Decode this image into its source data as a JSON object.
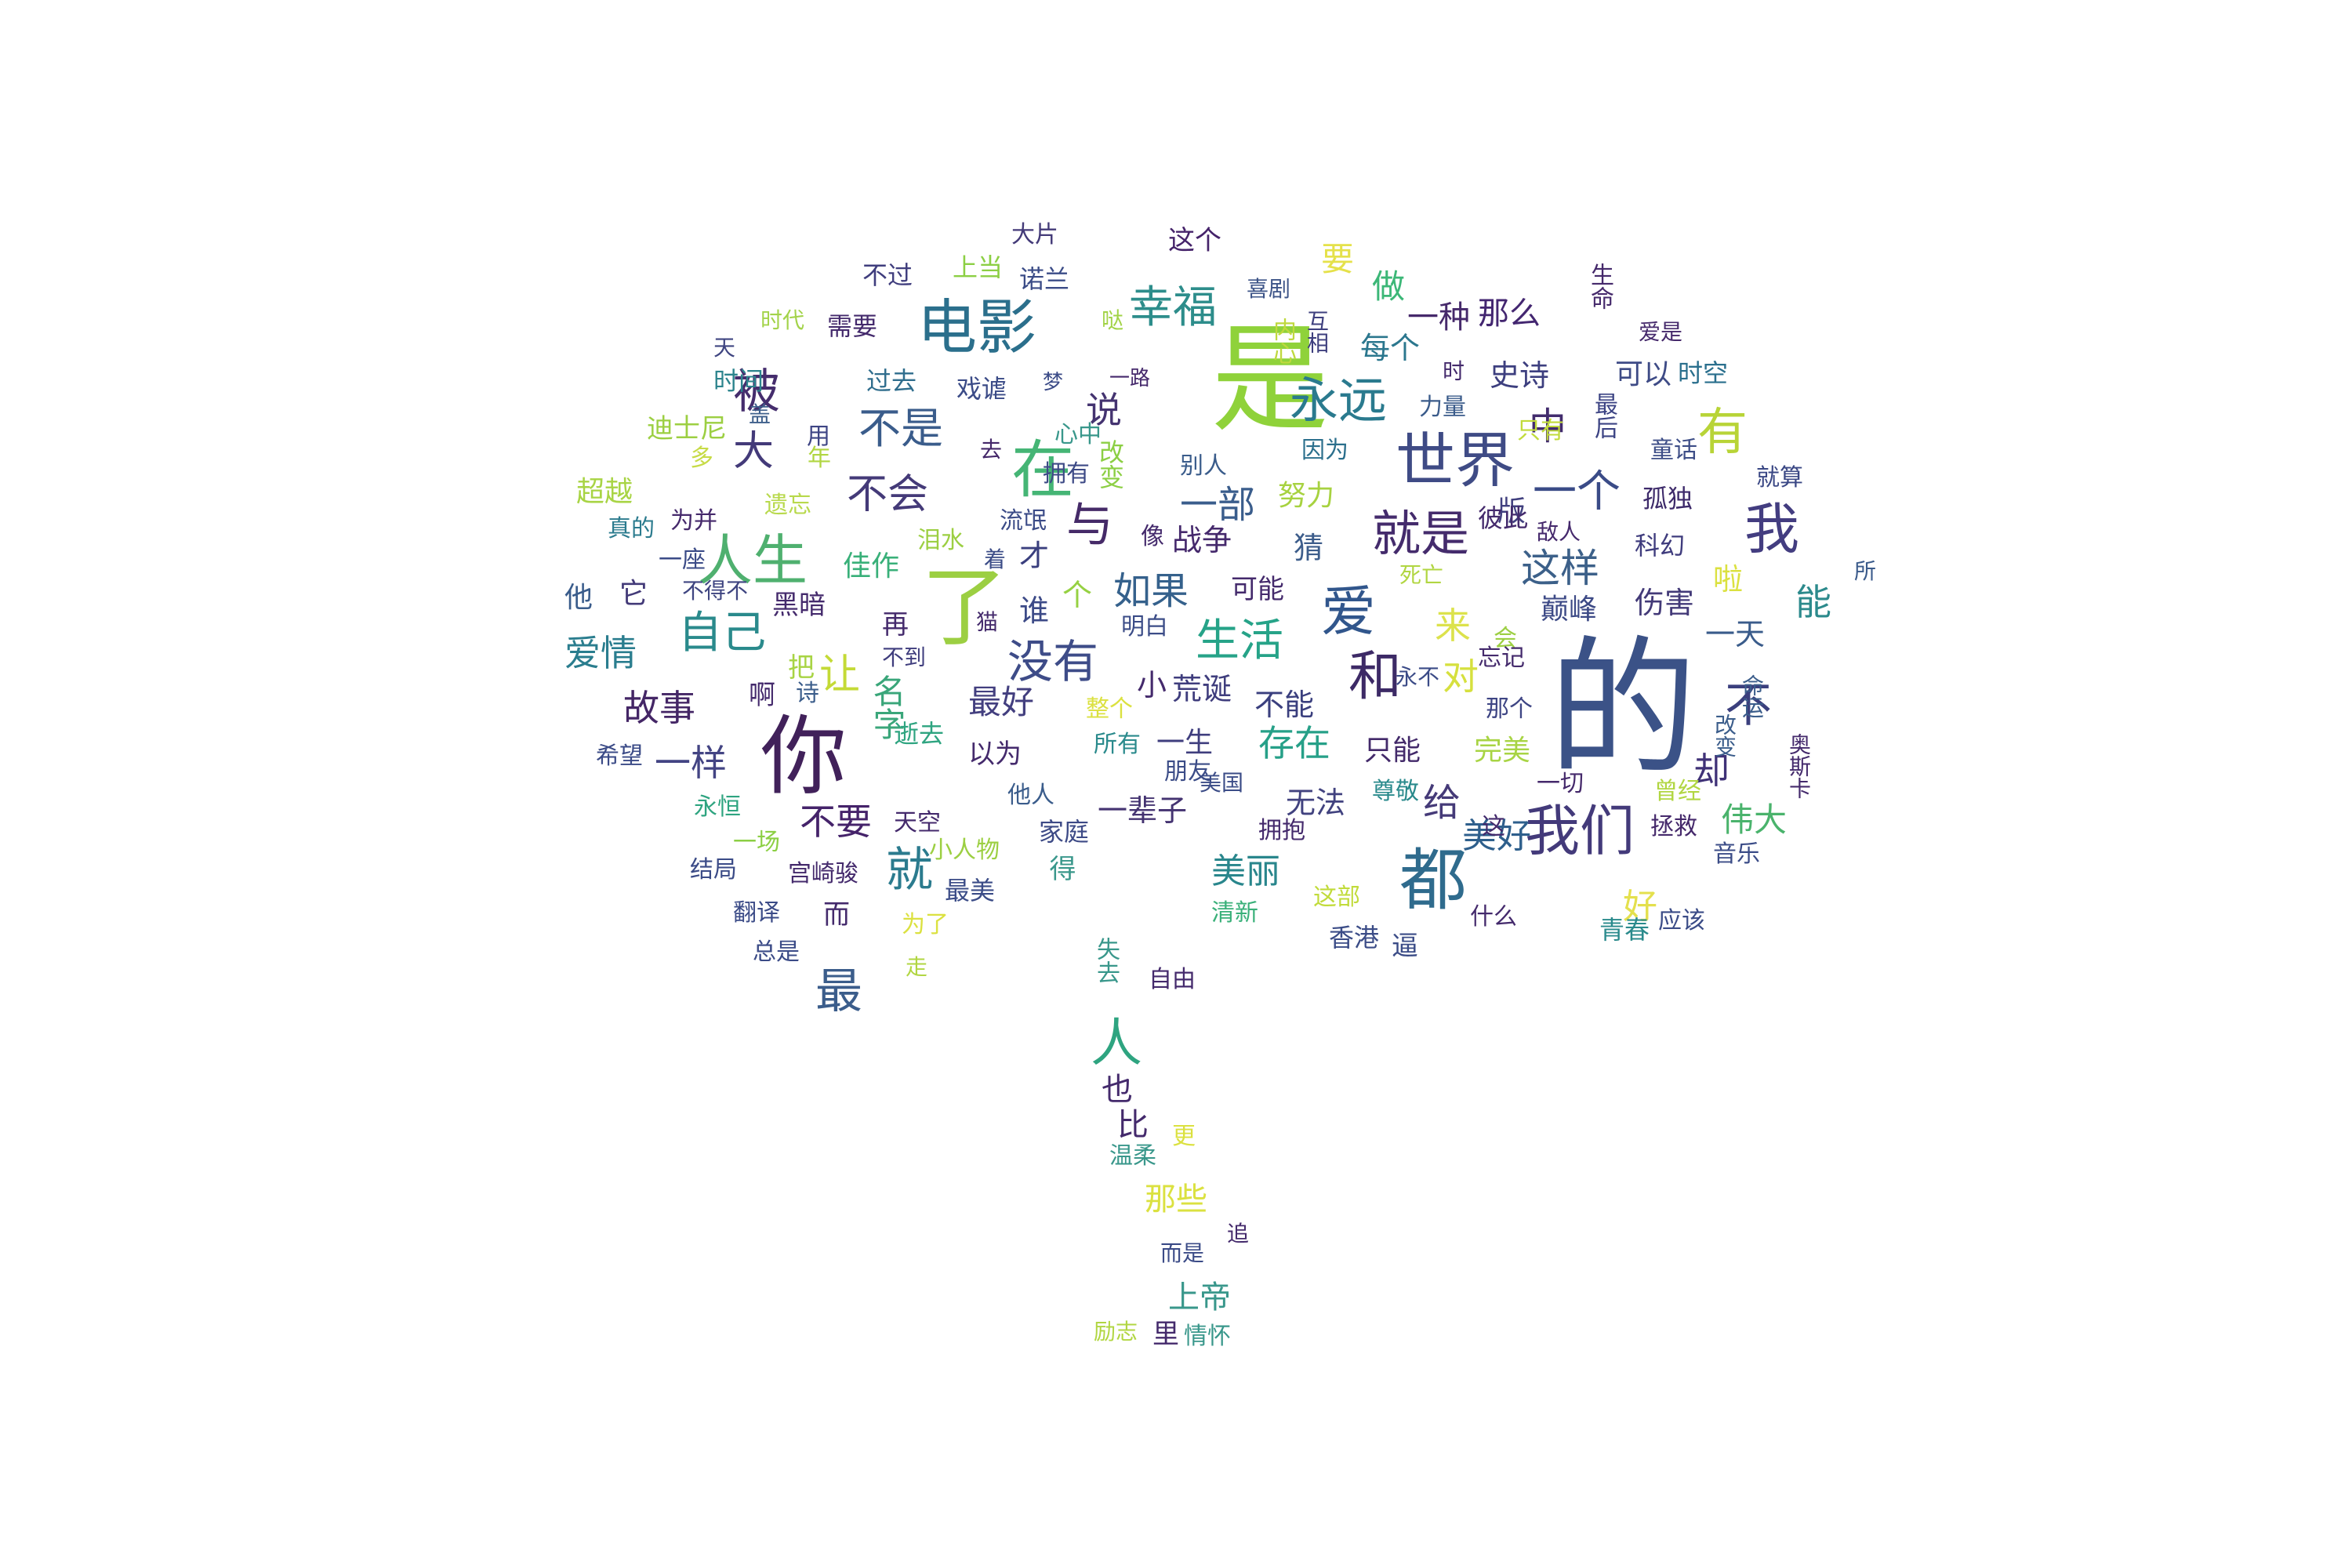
{
  "word_cloud": {
    "words": [
      {
        "text": "的",
        "color": "#3b5287"
      },
      {
        "text": "是",
        "color": "#8fd23a"
      },
      {
        "text": "你",
        "color": "#41215a"
      },
      {
        "text": "电影",
        "color": "#2b6f8c"
      },
      {
        "text": "了",
        "color": "#9ccf42"
      },
      {
        "text": "世界",
        "color": "#3f4b85"
      },
      {
        "text": "都",
        "color": "#2f6b8d"
      },
      {
        "text": "我们",
        "color": "#433a7a"
      },
      {
        "text": "人生",
        "color": "#4fb06f"
      },
      {
        "text": "就是",
        "color": "#442b6c"
      },
      {
        "text": "永远",
        "color": "#2a7a8e"
      },
      {
        "text": "在",
        "color": "#45b575"
      },
      {
        "text": "爱",
        "color": "#31568c"
      },
      {
        "text": "和",
        "color": "#3d2a66"
      },
      {
        "text": "我",
        "color": "#433d80"
      },
      {
        "text": "有",
        "color": "#b8d437"
      },
      {
        "text": "幸福",
        "color": "#2d8d8b"
      },
      {
        "text": "生活",
        "color": "#26a388"
      },
      {
        "text": "没有",
        "color": "#3e4c88"
      },
      {
        "text": "自己",
        "color": "#2a8a8c"
      },
      {
        "text": "不是",
        "color": "#3a5c8b"
      },
      {
        "text": "不会",
        "color": "#443a78"
      },
      {
        "text": "与",
        "color": "#452a68"
      },
      {
        "text": "一个",
        "color": "#3a4b87"
      },
      {
        "text": "这样",
        "color": "#3c6089"
      },
      {
        "text": "最",
        "color": "#3b5d8b"
      },
      {
        "text": "不",
        "color": "#3b3f7d"
      },
      {
        "text": "人",
        "color": "#2ea480"
      },
      {
        "text": "就",
        "color": "#2b7b8e"
      },
      {
        "text": "被",
        "color": "#452d6d"
      },
      {
        "text": "大",
        "color": "#433a79"
      },
      {
        "text": "一部",
        "color": "#3a5d8c"
      },
      {
        "text": "如果",
        "color": "#35618c"
      },
      {
        "text": "让",
        "color": "#c4da36"
      },
      {
        "text": "故事",
        "color": "#442666"
      },
      {
        "text": "爱情",
        "color": "#2a7d8e"
      },
      {
        "text": "一样",
        "color": "#434483"
      },
      {
        "text": "不要",
        "color": "#45236a"
      },
      {
        "text": "存在",
        "color": "#26a088"
      },
      {
        "text": "美丽",
        "color": "#29868c"
      },
      {
        "text": "美好",
        "color": "#2e5f8c"
      },
      {
        "text": "给",
        "color": "#453a78"
      },
      {
        "text": "却",
        "color": "#3f3177"
      },
      {
        "text": "伟大",
        "color": "#4ab36c"
      },
      {
        "text": "最好",
        "color": "#433f7f"
      },
      {
        "text": "名字",
        "color": "#3aa67a"
      },
      {
        "text": "要",
        "color": "#e5e14a"
      },
      {
        "text": "做",
        "color": "#3cb777"
      },
      {
        "text": "一种",
        "color": "#46296b"
      },
      {
        "text": "那么",
        "color": "#432670"
      },
      {
        "text": "每个",
        "color": "#2b778e"
      },
      {
        "text": "史诗",
        "color": "#3d3f7f"
      },
      {
        "text": "中",
        "color": "#422c6d"
      },
      {
        "text": "可以",
        "color": "#3e4b86"
      },
      {
        "text": "说",
        "color": "#443370"
      },
      {
        "text": "能",
        "color": "#2c8a8c"
      },
      {
        "text": "一天",
        "color": "#3a5c8b"
      },
      {
        "text": "来",
        "color": "#dce24c"
      },
      {
        "text": "对",
        "color": "#d6e03e"
      },
      {
        "text": "好",
        "color": "#e4e04d"
      },
      {
        "text": "佳作",
        "color": "#39b079"
      },
      {
        "text": "谁",
        "color": "#3c4a87"
      },
      {
        "text": "个",
        "color": "#96d142"
      },
      {
        "text": "才",
        "color": "#3a3f7e"
      },
      {
        "text": "猜",
        "color": "#3d5d8b"
      },
      {
        "text": "战争",
        "color": "#45296c"
      },
      {
        "text": "一生",
        "color": "#3f3e7e"
      },
      {
        "text": "完美",
        "color": "#a8d444"
      },
      {
        "text": "只能",
        "color": "#432a6a"
      },
      {
        "text": "一辈子",
        "color": "#443371"
      },
      {
        "text": "无法",
        "color": "#41427f"
      },
      {
        "text": "这个",
        "color": "#45236a"
      },
      {
        "text": "大片",
        "color": "#433a78"
      },
      {
        "text": "上当",
        "color": "#8ccf44"
      },
      {
        "text": "不过",
        "color": "#3f3d7d"
      },
      {
        "text": "诺兰",
        "color": "#3b4c87"
      },
      {
        "text": "需要",
        "color": "#442a6c"
      },
      {
        "text": "时代",
        "color": "#a3d34a"
      },
      {
        "text": "天",
        "color": "#3f4581"
      },
      {
        "text": "时间",
        "color": "#2c848d"
      },
      {
        "text": "过去",
        "color": "#2f6d8d"
      },
      {
        "text": "戏谑",
        "color": "#3b4b87"
      },
      {
        "text": "梦",
        "color": "#3b4b87"
      },
      {
        "text": "一路",
        "color": "#45296c"
      },
      {
        "text": "哒",
        "color": "#a2d347"
      },
      {
        "text": "喜剧",
        "color": "#3e5588"
      },
      {
        "text": "内心",
        "color": "#bfd93e"
      },
      {
        "text": "互相",
        "color": "#3e3f7e"
      },
      {
        "text": "生命",
        "color": "#45296b"
      },
      {
        "text": "爱是",
        "color": "#45296b"
      },
      {
        "text": "时空",
        "color": "#2a6f8d"
      },
      {
        "text": "时",
        "color": "#442a6c"
      },
      {
        "text": "力量",
        "color": "#3a5b8a"
      },
      {
        "text": "只有",
        "color": "#c1db3a"
      },
      {
        "text": "最后",
        "color": "#3d4484"
      },
      {
        "text": "童话",
        "color": "#3e4e87"
      },
      {
        "text": "就算",
        "color": "#3a4784"
      },
      {
        "text": "孤独",
        "color": "#3d2a6a"
      },
      {
        "text": "科幻",
        "color": "#3f3c7d"
      },
      {
        "text": "所",
        "color": "#3b5b8b"
      },
      {
        "text": "啦",
        "color": "#dbe140"
      },
      {
        "text": "伤害",
        "color": "#433a78"
      },
      {
        "text": "巅峰",
        "color": "#3d4a86"
      },
      {
        "text": "版",
        "color": "#41407f"
      },
      {
        "text": "敌人",
        "color": "#45296c"
      },
      {
        "text": "彼此",
        "color": "#442a6c"
      },
      {
        "text": "死亡",
        "color": "#b1d642"
      },
      {
        "text": "因为",
        "color": "#2b6f8c"
      },
      {
        "text": "努力",
        "color": "#a7d240"
      },
      {
        "text": "别人",
        "color": "#3a5c8b"
      },
      {
        "text": "改变",
        "color": "#8ccf44"
      },
      {
        "text": "拥有",
        "color": "#3d4a86"
      },
      {
        "text": "心中",
        "color": "#39978b"
      },
      {
        "text": "去",
        "color": "#442769"
      },
      {
        "text": "用",
        "color": "#3e4584"
      },
      {
        "text": "年",
        "color": "#b1d642"
      },
      {
        "text": "盖",
        "color": "#3e5f8b"
      },
      {
        "text": "多",
        "color": "#c7db47"
      },
      {
        "text": "迪士尼",
        "color": "#9ccf42"
      },
      {
        "text": "超越",
        "color": "#a8d444"
      },
      {
        "text": "遗忘",
        "color": "#b8d94c"
      },
      {
        "text": "为并",
        "color": "#45296b"
      },
      {
        "text": "真的",
        "color": "#2b7b8e"
      },
      {
        "text": "一座",
        "color": "#3b4b87"
      },
      {
        "text": "不得不",
        "color": "#3f4581"
      },
      {
        "text": "它",
        "color": "#433a78"
      },
      {
        "text": "他",
        "color": "#3a5c8b"
      },
      {
        "text": "黑暗",
        "color": "#442a6c"
      },
      {
        "text": "泪水",
        "color": "#9ccf42"
      },
      {
        "text": "着",
        "color": "#3b4c87"
      },
      {
        "text": "流氓",
        "color": "#3b4b87"
      },
      {
        "text": "像",
        "color": "#442a6c"
      },
      {
        "text": "可能",
        "color": "#442a6c"
      },
      {
        "text": "明白",
        "color": "#3b4c87"
      },
      {
        "text": "猫",
        "color": "#442a6c"
      },
      {
        "text": "再",
        "color": "#442a6c"
      },
      {
        "text": "不到",
        "color": "#3f3d7d"
      },
      {
        "text": "把",
        "color": "#a8d444"
      },
      {
        "text": "诗",
        "color": "#3b5d8b"
      },
      {
        "text": "啊",
        "color": "#442a6c"
      },
      {
        "text": "小",
        "color": "#442a6c"
      },
      {
        "text": "荒诞",
        "color": "#3f3d7d"
      },
      {
        "text": "不能",
        "color": "#3a3f7e"
      },
      {
        "text": "永不",
        "color": "#3b4b87"
      },
      {
        "text": "那个",
        "color": "#3e4584"
      },
      {
        "text": "会",
        "color": "#9ccf42"
      },
      {
        "text": "忘记",
        "color": "#442a6c"
      },
      {
        "text": "改变",
        "color": "#3b5d8b"
      },
      {
        "text": "命运",
        "color": "#3b5d8b"
      },
      {
        "text": "奥斯卡",
        "color": "#442a6c"
      },
      {
        "text": "希望",
        "color": "#3b4b87"
      },
      {
        "text": "逝去",
        "color": "#2ea480"
      },
      {
        "text": "以为",
        "color": "#442a6c"
      },
      {
        "text": "整个",
        "color": "#dbe140"
      },
      {
        "text": "所有",
        "color": "#2a8a8c"
      },
      {
        "text": "朋友",
        "color": "#3b4c87"
      },
      {
        "text": "美国",
        "color": "#3b4c87"
      },
      {
        "text": "尊敬",
        "color": "#2a8a8c"
      },
      {
        "text": "一切",
        "color": "#45296b"
      },
      {
        "text": "曾经",
        "color": "#b1d642"
      },
      {
        "text": "拯救",
        "color": "#45296b"
      },
      {
        "text": "永恒",
        "color": "#2ea480"
      },
      {
        "text": "他人",
        "color": "#3a5c8b"
      },
      {
        "text": "天空",
        "color": "#442a6c"
      },
      {
        "text": "家庭",
        "color": "#3d4a86"
      },
      {
        "text": "拥抱",
        "color": "#442a6c"
      },
      {
        "text": "这",
        "color": "#442a6c"
      },
      {
        "text": "音乐",
        "color": "#3b4c87"
      },
      {
        "text": "结局",
        "color": "#3b4b87"
      },
      {
        "text": "一场",
        "color": "#8ccf44"
      },
      {
        "text": "宫崎骏",
        "color": "#442a6c"
      },
      {
        "text": "小人物",
        "color": "#9ccf42"
      },
      {
        "text": "最美",
        "color": "#3b4c87"
      },
      {
        "text": "得",
        "color": "#39978b"
      },
      {
        "text": "翻译",
        "color": "#3b4b87"
      },
      {
        "text": "而",
        "color": "#442a6c"
      },
      {
        "text": "为了",
        "color": "#dbe140"
      },
      {
        "text": "清新",
        "color": "#39b079"
      },
      {
        "text": "这部",
        "color": "#c1db3a"
      },
      {
        "text": "什么",
        "color": "#442a6c"
      },
      {
        "text": "青春",
        "color": "#2a8a8c"
      },
      {
        "text": "应该",
        "color": "#3b4c87"
      },
      {
        "text": "香港",
        "color": "#3b4c87"
      },
      {
        "text": "逼",
        "color": "#3b4c87"
      },
      {
        "text": "总是",
        "color": "#3b4b87"
      },
      {
        "text": "走",
        "color": "#b1d642"
      },
      {
        "text": "失去",
        "color": "#39978b"
      },
      {
        "text": "自由",
        "color": "#442a6c"
      },
      {
        "text": "也",
        "color": "#442a6c"
      },
      {
        "text": "比",
        "color": "#442a6c"
      },
      {
        "text": "更",
        "color": "#dbe140"
      },
      {
        "text": "温柔",
        "color": "#39978b"
      },
      {
        "text": "那些",
        "color": "#dbe140"
      },
      {
        "text": "追",
        "color": "#442a6c"
      },
      {
        "text": "而是",
        "color": "#3b4b87"
      },
      {
        "text": "上帝",
        "color": "#39978b"
      },
      {
        "text": "里",
        "color": "#442a6c"
      },
      {
        "text": "情怀",
        "color": "#39978b"
      },
      {
        "text": "励志",
        "color": "#b1d642"
      }
    ]
  }
}
